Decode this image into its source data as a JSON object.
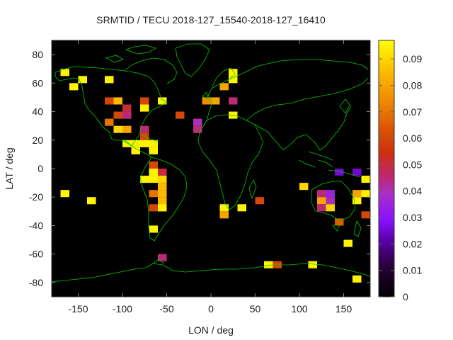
{
  "chart_data": {
    "type": "heatmap",
    "title": "SRMTID / TECU 2018-127_15540-2018-127_16410",
    "xlabel": "LON / deg",
    "ylabel": "LAT / deg",
    "xlim": [
      -180,
      180
    ],
    "ylim": [
      -90,
      90
    ],
    "x_ticks": [
      -150,
      -100,
      -50,
      0,
      50,
      100,
      150
    ],
    "y_ticks": [
      -80,
      -60,
      -40,
      -20,
      0,
      20,
      40,
      60,
      80
    ],
    "cell_size_deg": [
      10,
      5
    ],
    "colorbar": {
      "min": 0,
      "max": 0.097,
      "ticks": [
        0,
        0.01,
        0.02,
        0.03,
        0.04,
        0.05,
        0.06,
        0.07,
        0.08,
        0.09
      ],
      "tick_labels": [
        "0",
        "0.01",
        "0.02",
        "0.03",
        "0.04",
        "0.05",
        "0.06",
        "0.07",
        "0.08",
        "0.09"
      ],
      "colormap": "gnuplot-rgbformulae-7-5-15"
    },
    "overlay": "coastlines",
    "coastline_color": "#00cc00",
    "background_color": "#000000",
    "cells": [
      {
        "lon": -165,
        "lat": 67.5,
        "value": 0.095
      },
      {
        "lon": -145,
        "lat": 62.5,
        "value": 0.095
      },
      {
        "lon": -155,
        "lat": 57.5,
        "value": 0.095
      },
      {
        "lon": -115,
        "lat": 62.5,
        "value": 0.095
      },
      {
        "lon": -115,
        "lat": 47.5,
        "value": 0.06
      },
      {
        "lon": -105,
        "lat": 47.5,
        "value": 0.085
      },
      {
        "lon": -95,
        "lat": 42.5,
        "value": 0.05
      },
      {
        "lon": -105,
        "lat": 37.5,
        "value": 0.06
      },
      {
        "lon": -95,
        "lat": 37.5,
        "value": 0.045
      },
      {
        "lon": -115,
        "lat": 32.5,
        "value": 0.07
      },
      {
        "lon": -105,
        "lat": 27.5,
        "value": 0.09
      },
      {
        "lon": -95,
        "lat": 27.5,
        "value": 0.08
      },
      {
        "lon": -75,
        "lat": 47.5,
        "value": 0.06
      },
      {
        "lon": -75,
        "lat": 42.5,
        "value": 0.095
      },
      {
        "lon": -55,
        "lat": 47.5,
        "value": 0.095
      },
      {
        "lon": -75,
        "lat": 27.5,
        "value": 0.045
      },
      {
        "lon": -75,
        "lat": 22.5,
        "value": 0.06
      },
      {
        "lon": -95,
        "lat": 17.5,
        "value": 0.095
      },
      {
        "lon": -85,
        "lat": 17.5,
        "value": 0.095
      },
      {
        "lon": -75,
        "lat": 17.5,
        "value": 0.095
      },
      {
        "lon": -65,
        "lat": 17.5,
        "value": 0.095
      },
      {
        "lon": -85,
        "lat": 12.5,
        "value": 0.095
      },
      {
        "lon": -65,
        "lat": 12.5,
        "value": 0.095
      },
      {
        "lon": -35,
        "lat": 37.5,
        "value": 0.06
      },
      {
        "lon": -15,
        "lat": 32.5,
        "value": 0.04
      },
      {
        "lon": -15,
        "lat": 27.5,
        "value": 0.045
      },
      {
        "lon": 15,
        "lat": 57.5,
        "value": 0.08
      },
      {
        "lon": 25,
        "lat": 62.5,
        "value": 0.095
      },
      {
        "lon": 25,
        "lat": 67.5,
        "value": 0.095
      },
      {
        "lon": -5,
        "lat": 47.5,
        "value": 0.075
      },
      {
        "lon": 5,
        "lat": 47.5,
        "value": 0.08
      },
      {
        "lon": 25,
        "lat": 47.5,
        "value": 0.045
      },
      {
        "lon": 25,
        "lat": 37.5,
        "value": 0.095
      },
      {
        "lon": -65,
        "lat": 2.5,
        "value": 0.06
      },
      {
        "lon": -55,
        "lat": -2.5,
        "value": 0.05
      },
      {
        "lon": -65,
        "lat": -2.5,
        "value": 0.095
      },
      {
        "lon": -75,
        "lat": -7.5,
        "value": 0.095
      },
      {
        "lon": -65,
        "lat": -7.5,
        "value": 0.095
      },
      {
        "lon": -55,
        "lat": -7.5,
        "value": 0.09
      },
      {
        "lon": -55,
        "lat": -12.5,
        "value": 0.085
      },
      {
        "lon": -55,
        "lat": -17.5,
        "value": 0.085
      },
      {
        "lon": -55,
        "lat": -22.5,
        "value": 0.085
      },
      {
        "lon": -55,
        "lat": -27.5,
        "value": 0.095
      },
      {
        "lon": -65,
        "lat": -17.5,
        "value": 0.07
      },
      {
        "lon": -55,
        "lat": -27.5,
        "value": 0.095
      },
      {
        "lon": -65,
        "lat": -27.5,
        "value": 0.06
      },
      {
        "lon": -65,
        "lat": -42.5,
        "value": 0.095
      },
      {
        "lon": -55,
        "lat": -62.5,
        "value": 0.045
      },
      {
        "lon": -165,
        "lat": -17.5,
        "value": 0.095
      },
      {
        "lon": -135,
        "lat": -22.5,
        "value": 0.095
      },
      {
        "lon": 15,
        "lat": -27.5,
        "value": 0.095
      },
      {
        "lon": 15,
        "lat": -32.5,
        "value": 0.08
      },
      {
        "lon": 35,
        "lat": -27.5,
        "value": 0.095
      },
      {
        "lon": 55,
        "lat": -22.5,
        "value": 0.06
      },
      {
        "lon": 105,
        "lat": -12.5,
        "value": 0.09
      },
      {
        "lon": 125,
        "lat": -17.5,
        "value": 0.045
      },
      {
        "lon": 135,
        "lat": -17.5,
        "value": 0.035
      },
      {
        "lon": 145,
        "lat": -2.5,
        "value": 0.025
      },
      {
        "lon": 165,
        "lat": -2.5,
        "value": 0.025
      },
      {
        "lon": 125,
        "lat": -22.5,
        "value": 0.08
      },
      {
        "lon": 135,
        "lat": -22.5,
        "value": 0.04
      },
      {
        "lon": 125,
        "lat": -27.5,
        "value": 0.045
      },
      {
        "lon": 135,
        "lat": -27.5,
        "value": 0.09
      },
      {
        "lon": 145,
        "lat": -37.5,
        "value": 0.065
      },
      {
        "lon": 155,
        "lat": -52.5,
        "value": 0.095
      },
      {
        "lon": 165,
        "lat": -17.5,
        "value": 0.08
      },
      {
        "lon": 175,
        "lat": -17.5,
        "value": 0.095
      },
      {
        "lon": 175,
        "lat": -7.5,
        "value": 0.095
      },
      {
        "lon": 165,
        "lat": -22.5,
        "value": 0.095
      },
      {
        "lon": 175,
        "lat": -32.5,
        "value": 0.06
      },
      {
        "lon": 65,
        "lat": -67.5,
        "value": 0.095
      },
      {
        "lon": 75,
        "lat": -67.5,
        "value": 0.06
      },
      {
        "lon": 115,
        "lat": -67.5,
        "value": 0.095
      },
      {
        "lon": 165,
        "lat": -77.5,
        "value": 0.095
      }
    ]
  }
}
